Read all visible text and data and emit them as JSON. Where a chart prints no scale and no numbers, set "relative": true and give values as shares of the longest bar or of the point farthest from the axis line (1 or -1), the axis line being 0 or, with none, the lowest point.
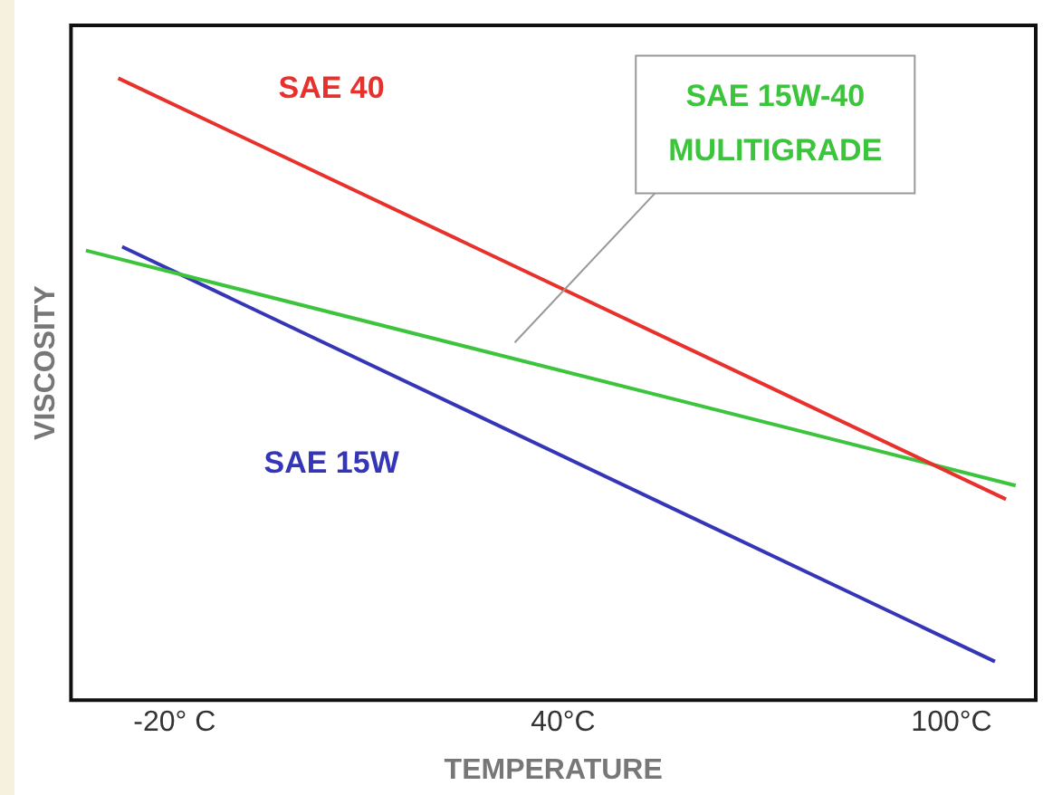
{
  "chart_data": {
    "type": "line",
    "xlabel": "TEMPERATURE",
    "ylabel": "VISCOSITY",
    "relative": true,
    "xlim": [
      -36,
      113
    ],
    "xticks": [
      {
        "value": -20,
        "label": "-20° C"
      },
      {
        "value": 40,
        "label": "40°C"
      },
      {
        "value": 100,
        "label": "100°C"
      }
    ],
    "grid": false,
    "legend": false,
    "marker": "none",
    "line_style": "solid",
    "series": [
      {
        "name": "SAE 40",
        "color": "#e8302c",
        "x": [
          -28.7,
          108.4
        ],
        "values": [
          1,
          0.323
        ]
      },
      {
        "name": "SAE 15W-40 MULITIGRADE",
        "color": "#3cc43c",
        "x": [
          -33.7,
          109.9
        ],
        "values": [
          0.723,
          0.345
        ]
      },
      {
        "name": "SAE 15W",
        "color": "#3535b8",
        "x": [
          -28.1,
          106.7
        ],
        "values": [
          0.729,
          0.062
        ]
      }
    ]
  }
}
